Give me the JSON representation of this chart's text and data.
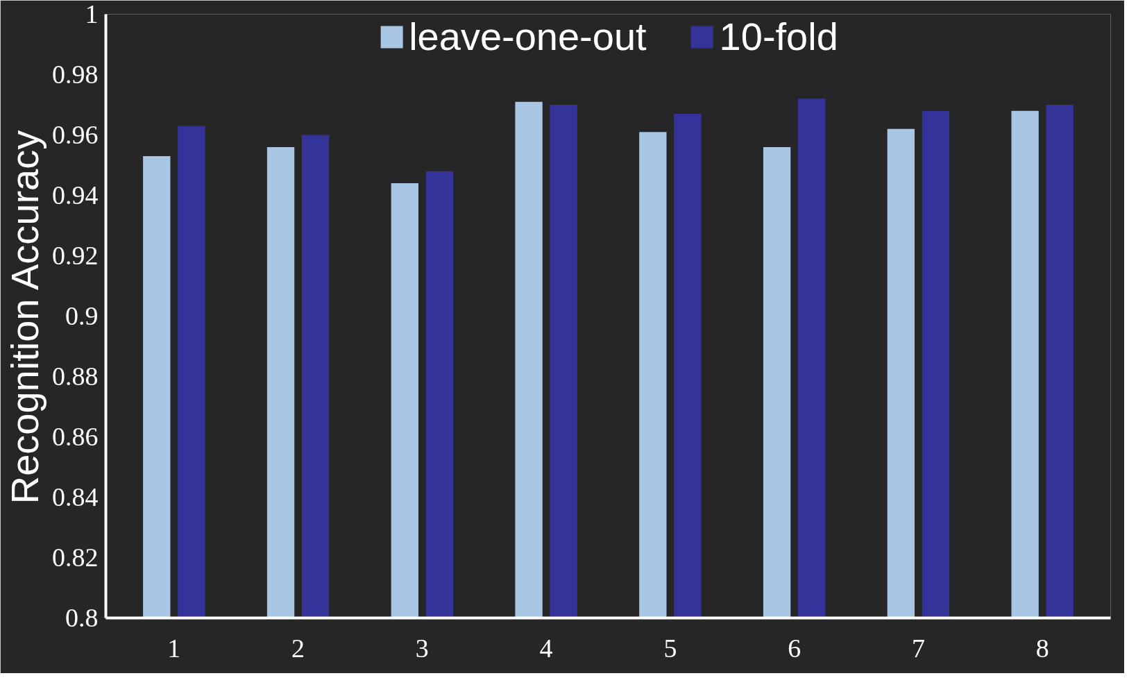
{
  "chart_data": {
    "type": "bar",
    "ylabel": "Recognition Accuracy",
    "categories": [
      "1",
      "2",
      "3",
      "4",
      "5",
      "6",
      "7",
      "8"
    ],
    "series": [
      {
        "name": "leave-one-out",
        "color": "#a9c6e5",
        "values": [
          0.953,
          0.956,
          0.944,
          0.971,
          0.961,
          0.956,
          0.962,
          0.968
        ]
      },
      {
        "name": "10-fold",
        "color": "#333399",
        "values": [
          0.963,
          0.96,
          0.948,
          0.97,
          0.967,
          0.972,
          0.968,
          0.97
        ]
      }
    ],
    "ylim": [
      0.8,
      1
    ],
    "yticks": [
      0.8,
      0.82,
      0.84,
      0.86,
      0.88,
      0.9,
      0.92,
      0.94,
      0.96,
      0.98,
      1
    ],
    "grid": false,
    "legend": "top"
  }
}
